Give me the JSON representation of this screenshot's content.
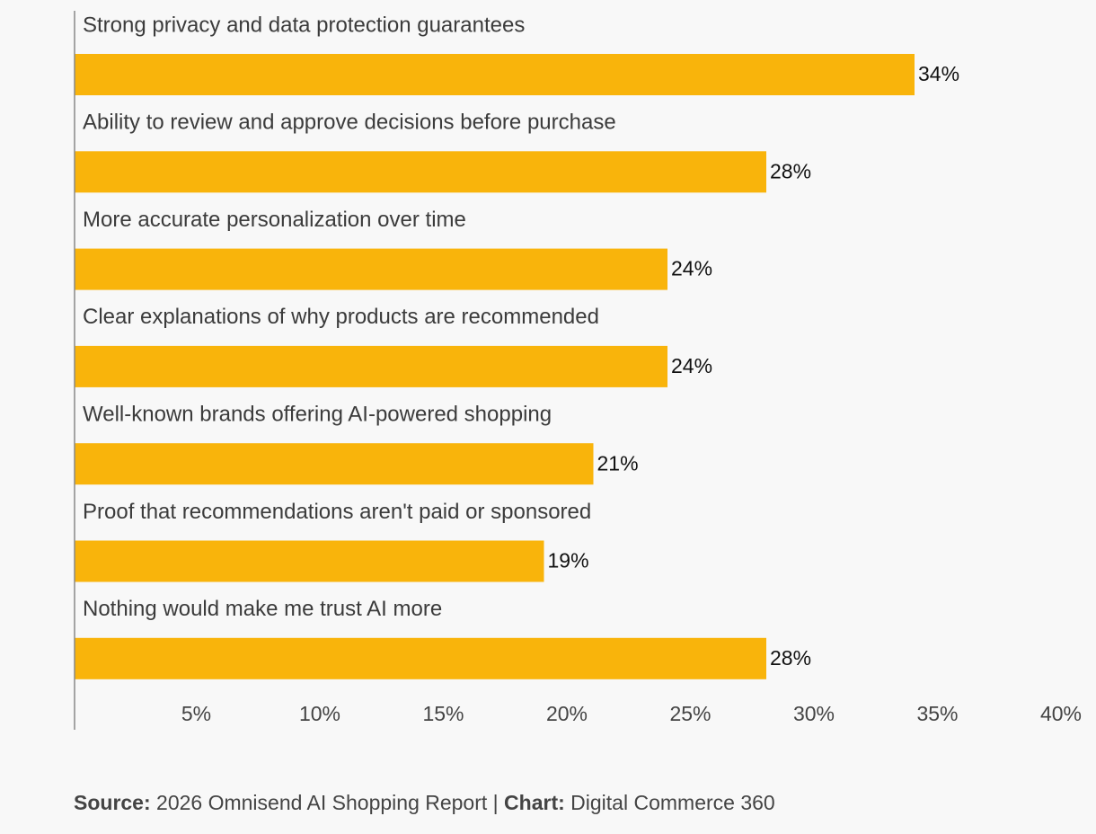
{
  "chart_data": {
    "type": "bar",
    "orientation": "horizontal",
    "categories": [
      "Strong privacy and data protection guarantees",
      "Ability to review and approve decisions before purchase",
      "More accurate personalization over time",
      "Clear explanations of why products are recommended",
      "Well-known brands offering AI-powered shopping",
      "Proof that recommendations aren't paid or sponsored",
      "Nothing would make me trust AI more"
    ],
    "values": [
      34,
      28,
      24,
      24,
      21,
      19,
      28
    ],
    "value_labels": [
      "34%",
      "28%",
      "24%",
      "24%",
      "21%",
      "19%",
      "28%"
    ],
    "xticks": [
      5,
      10,
      15,
      20,
      25,
      30,
      35,
      40
    ],
    "xtick_labels": [
      "5%",
      "10%",
      "15%",
      "20%",
      "25%",
      "30%",
      "35%",
      "40%"
    ],
    "xlim": [
      0,
      40
    ],
    "bar_color": "#f9b40b",
    "axis_color": "#888888"
  },
  "footer": {
    "source_label": "Source:",
    "source_text": " 2026 Omnisend AI Shopping Report | ",
    "chart_label": "Chart:",
    "chart_text": " Digital Commerce 360"
  }
}
